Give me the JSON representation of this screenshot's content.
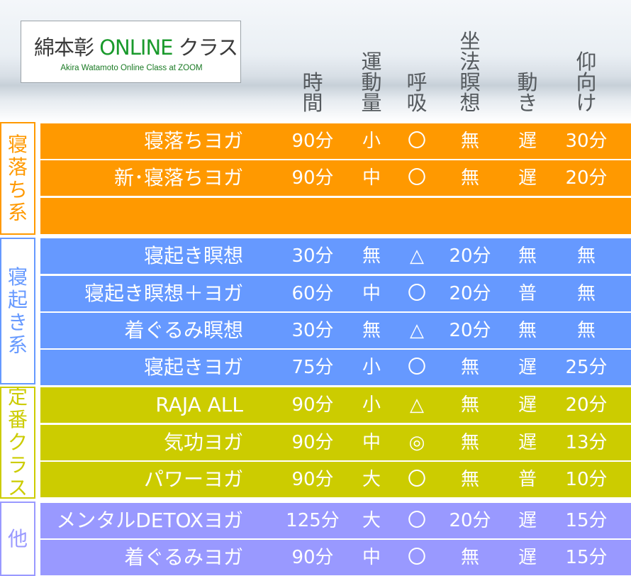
{
  "logo": {
    "title_prefix": "綿本彰 ",
    "title_online": "ONLINE",
    "title_suffix": " クラス",
    "subtitle": "Akira Watamoto Online Class at ZOOM"
  },
  "headers": [
    [
      "時",
      "間"
    ],
    [
      "運",
      "動",
      "量"
    ],
    [
      "呼",
      "吸"
    ],
    [
      "坐",
      "法",
      "瞑",
      "想"
    ],
    [
      "動",
      "き"
    ],
    [
      "仰",
      "向",
      "け"
    ]
  ],
  "groups": [
    {
      "label": [
        "寝",
        "落",
        "ち",
        "系"
      ],
      "color": "#ff9900",
      "rows": [
        {
          "name": "寝落ちヨガ",
          "time": "90分",
          "movement": "小",
          "breath": "〇",
          "meditation": "無",
          "motion": "遅",
          "supine": "30分"
        },
        {
          "name": "新･寝落ちヨガ",
          "time": "90分",
          "movement": "中",
          "breath": "〇",
          "meditation": "無",
          "motion": "遅",
          "supine": "20分"
        }
      ]
    },
    {
      "label": [
        "寝",
        "起",
        "き",
        "系"
      ],
      "color": "#6699ff",
      "rows": [
        {
          "name": "寝起き瞑想",
          "time": "30分",
          "movement": "無",
          "breath": "△",
          "meditation": "20分",
          "motion": "無",
          "supine": "無"
        },
        {
          "name": "寝起き瞑想＋ヨガ",
          "time": "60分",
          "movement": "中",
          "breath": "〇",
          "meditation": "20分",
          "motion": "普",
          "supine": "無"
        },
        {
          "name": "着ぐるみ瞑想",
          "time": "30分",
          "movement": "無",
          "breath": "△",
          "meditation": "20分",
          "motion": "無",
          "supine": "無"
        },
        {
          "name": "寝起きヨガ",
          "time": "75分",
          "movement": "小",
          "breath": "〇",
          "meditation": "無",
          "motion": "遅",
          "supine": "25分"
        }
      ]
    },
    {
      "label": [
        "定",
        "番",
        "ク",
        "ラ",
        "ス"
      ],
      "color": "#cccc00",
      "rows": [
        {
          "name": "RAJA ALL",
          "time": "90分",
          "movement": "小",
          "breath": "△",
          "meditation": "無",
          "motion": "遅",
          "supine": "20分"
        },
        {
          "name": "気功ヨガ",
          "time": "90分",
          "movement": "中",
          "breath": "◎",
          "meditation": "無",
          "motion": "遅",
          "supine": "13分"
        },
        {
          "name": "パワーヨガ",
          "time": "90分",
          "movement": "大",
          "breath": "〇",
          "meditation": "無",
          "motion": "普",
          "supine": "10分"
        }
      ]
    },
    {
      "label": [
        "他"
      ],
      "color": "#9999ff",
      "rows": [
        {
          "name": "メンタルDETOXヨガ",
          "time": "125分",
          "movement": "大",
          "breath": "〇",
          "meditation": "20分",
          "motion": "遅",
          "supine": "15分"
        },
        {
          "name": "着ぐるみヨガ",
          "time": "90分",
          "movement": "中",
          "breath": "〇",
          "meditation": "無",
          "motion": "遅",
          "supine": "15分"
        }
      ]
    }
  ]
}
